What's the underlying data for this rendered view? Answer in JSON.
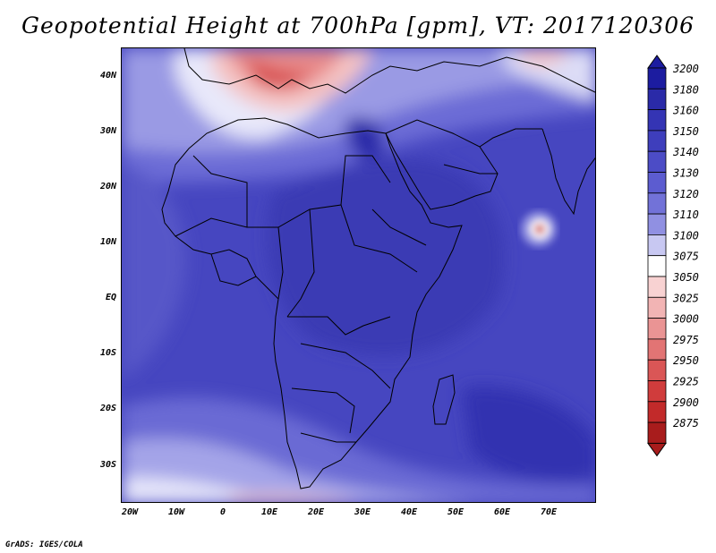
{
  "title": "Geopotential Height at 700hPa [gpm], VT: 2017120306",
  "credit": "GrADS: IGES/COLA",
  "lat_labels": [
    "40N",
    "30N",
    "20N",
    "10N",
    "EQ",
    "10S",
    "20S",
    "30S"
  ],
  "lon_labels": [
    "20W",
    "10W",
    "0",
    "10E",
    "20E",
    "30E",
    "40E",
    "50E",
    "60E",
    "70E"
  ],
  "colorbar": {
    "levels": [
      "3200",
      "3180",
      "3160",
      "3150",
      "3140",
      "3130",
      "3120",
      "3110",
      "3100",
      "3075",
      "3050",
      "3025",
      "3000",
      "2975",
      "2950",
      "2925",
      "2900",
      "2875"
    ],
    "colors": [
      "#1c1ca0",
      "#2a2aa8",
      "#3434b4",
      "#3e3ebc",
      "#4c4cc6",
      "#5c5cd0",
      "#7272d8",
      "#9090e2",
      "#c8c8f2",
      "#ffffff",
      "#f8d2d2",
      "#f2b4b4",
      "#ea9494",
      "#e27474",
      "#da5656",
      "#d03c3c",
      "#c22a2a",
      "#a81c1c"
    ]
  }
}
